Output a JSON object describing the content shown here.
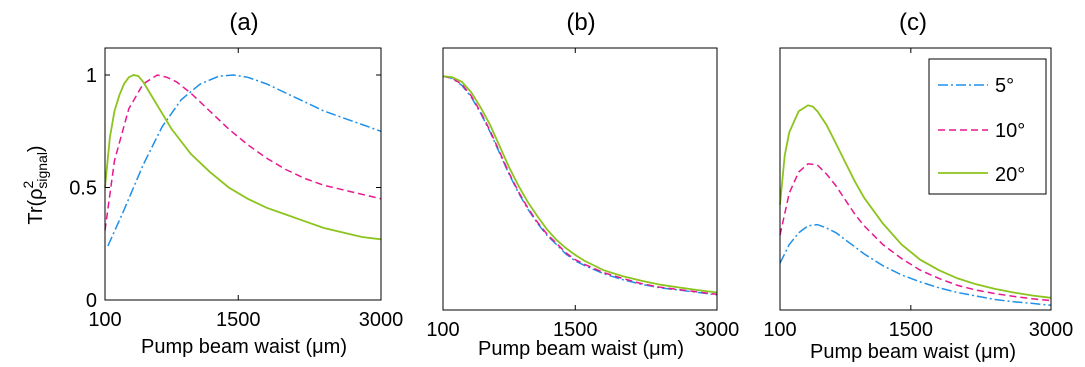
{
  "chart_data": [
    {
      "type": "line",
      "title": "(a)",
      "xlabel": "Pump beam waist (μm)",
      "ylabel": "Tr(ρ²signal)",
      "xlim": [
        100,
        3000
      ],
      "ylim": [
        0,
        1.12
      ],
      "xticks": [
        "100",
        "1500",
        "3000"
      ],
      "yticks": [
        "0",
        "0.5",
        "1"
      ],
      "grid": false,
      "series": [
        {
          "name": "5°",
          "color": "#1e90e8",
          "dash": "dashdot",
          "x": [
            130,
            300,
            500,
            700,
            900,
            1100,
            1300,
            1450,
            1600,
            1800,
            2000,
            2200,
            2400,
            2600,
            2800,
            3000
          ],
          "y": [
            0.24,
            0.4,
            0.6,
            0.77,
            0.89,
            0.96,
            0.995,
            1.0,
            0.99,
            0.96,
            0.92,
            0.88,
            0.84,
            0.81,
            0.78,
            0.75
          ]
        },
        {
          "name": "10°",
          "color": "#e8178f",
          "dash": "dashed",
          "x": [
            100,
            200,
            350,
            500,
            650,
            750,
            850,
            1000,
            1200,
            1400,
            1600,
            1800,
            2000,
            2200,
            2400,
            2600,
            2800,
            3000
          ],
          "y": [
            0.31,
            0.62,
            0.85,
            0.96,
            1.0,
            0.99,
            0.97,
            0.92,
            0.84,
            0.76,
            0.69,
            0.63,
            0.58,
            0.54,
            0.51,
            0.49,
            0.47,
            0.45
          ]
        },
        {
          "name": "20°",
          "color": "#8cc41e",
          "dash": "solid",
          "x": [
            100,
            150,
            200,
            250,
            300,
            350,
            400,
            450,
            500,
            600,
            700,
            800,
            1000,
            1200,
            1400,
            1600,
            1800,
            2000,
            2200,
            2400,
            2600,
            2800,
            3000
          ],
          "y": [
            0.5,
            0.72,
            0.84,
            0.91,
            0.96,
            0.99,
            1.0,
            0.995,
            0.97,
            0.9,
            0.83,
            0.76,
            0.65,
            0.57,
            0.5,
            0.45,
            0.41,
            0.38,
            0.35,
            0.32,
            0.3,
            0.28,
            0.27
          ]
        }
      ]
    },
    {
      "type": "line",
      "title": "(b)",
      "xlabel": "Pump beam waist (μm)",
      "xlim": [
        100,
        3000
      ],
      "ylim": [
        0,
        1.12
      ],
      "xticks": [
        "100",
        "1500",
        "3000"
      ],
      "grid": false,
      "series": [
        {
          "name": "5°",
          "color": "#1e90e8",
          "dash": "dashdot",
          "x": [
            100,
            200,
            300,
            400,
            500,
            600,
            700,
            800,
            900,
            1000,
            1100,
            1200,
            1300,
            1400,
            1500,
            1600,
            1800,
            2000,
            2200,
            2400,
            2600,
            2800,
            3000
          ],
          "y": [
            1.0,
            0.99,
            0.96,
            0.91,
            0.84,
            0.76,
            0.67,
            0.58,
            0.5,
            0.43,
            0.37,
            0.32,
            0.28,
            0.24,
            0.21,
            0.19,
            0.155,
            0.13,
            0.11,
            0.095,
            0.085,
            0.075,
            0.065
          ]
        },
        {
          "name": "10°",
          "color": "#e8178f",
          "dash": "dashed",
          "x": [
            100,
            200,
            300,
            400,
            500,
            600,
            700,
            800,
            900,
            1000,
            1100,
            1200,
            1300,
            1400,
            1500,
            1600,
            1800,
            2000,
            2200,
            2400,
            2600,
            2800,
            3000
          ],
          "y": [
            1.0,
            0.99,
            0.965,
            0.915,
            0.845,
            0.765,
            0.675,
            0.585,
            0.505,
            0.435,
            0.375,
            0.325,
            0.285,
            0.245,
            0.215,
            0.195,
            0.16,
            0.135,
            0.113,
            0.097,
            0.087,
            0.077,
            0.067
          ]
        },
        {
          "name": "20°",
          "color": "#8cc41e",
          "dash": "solid",
          "x": [
            100,
            200,
            300,
            400,
            500,
            600,
            700,
            800,
            900,
            1000,
            1100,
            1200,
            1300,
            1400,
            1500,
            1600,
            1800,
            2000,
            2200,
            2400,
            2600,
            2800,
            3000
          ],
          "y": [
            1.0,
            0.995,
            0.975,
            0.93,
            0.865,
            0.79,
            0.7,
            0.61,
            0.53,
            0.46,
            0.4,
            0.345,
            0.3,
            0.265,
            0.235,
            0.21,
            0.17,
            0.145,
            0.125,
            0.108,
            0.096,
            0.085,
            0.075
          ]
        }
      ]
    },
    {
      "type": "line",
      "title": "(c)",
      "xlabel": "Pump beam waist (μm)",
      "xlim": [
        100,
        3000
      ],
      "ylim": [
        0,
        1.12
      ],
      "xticks": [
        "100",
        "1500",
        "3000"
      ],
      "grid": false,
      "legend": {
        "position": "top-right",
        "entries": [
          "5°",
          "10°",
          "20°"
        ]
      },
      "series": [
        {
          "name": "5°",
          "color": "#1e90e8",
          "dash": "dashdot",
          "x": [
            100,
            200,
            300,
            400,
            500,
            600,
            700,
            800,
            900,
            1000,
            1200,
            1400,
            1600,
            1800,
            2000,
            2200,
            2400,
            2600,
            2800,
            3000
          ],
          "y": [
            0.2,
            0.28,
            0.33,
            0.36,
            0.365,
            0.35,
            0.33,
            0.3,
            0.27,
            0.24,
            0.19,
            0.15,
            0.12,
            0.095,
            0.075,
            0.06,
            0.045,
            0.035,
            0.028,
            0.02
          ]
        },
        {
          "name": "10°",
          "color": "#e8178f",
          "dash": "dashed",
          "x": [
            100,
            200,
            300,
            400,
            500,
            600,
            700,
            800,
            900,
            1000,
            1200,
            1400,
            1600,
            1800,
            2000,
            2200,
            2400,
            2600,
            2800,
            3000
          ],
          "y": [
            0.32,
            0.5,
            0.59,
            0.625,
            0.62,
            0.58,
            0.53,
            0.47,
            0.41,
            0.36,
            0.28,
            0.22,
            0.17,
            0.135,
            0.105,
            0.085,
            0.07,
            0.058,
            0.048,
            0.04
          ]
        },
        {
          "name": "20°",
          "color": "#8cc41e",
          "dash": "solid",
          "x": [
            100,
            150,
            200,
            300,
            400,
            450,
            500,
            600,
            700,
            800,
            900,
            1000,
            1200,
            1400,
            1600,
            1800,
            2000,
            2200,
            2400,
            2600,
            2800,
            3000
          ],
          "y": [
            0.45,
            0.66,
            0.76,
            0.85,
            0.875,
            0.87,
            0.85,
            0.79,
            0.71,
            0.63,
            0.55,
            0.48,
            0.37,
            0.28,
            0.215,
            0.17,
            0.135,
            0.11,
            0.09,
            0.075,
            0.062,
            0.052
          ]
        }
      ]
    }
  ]
}
